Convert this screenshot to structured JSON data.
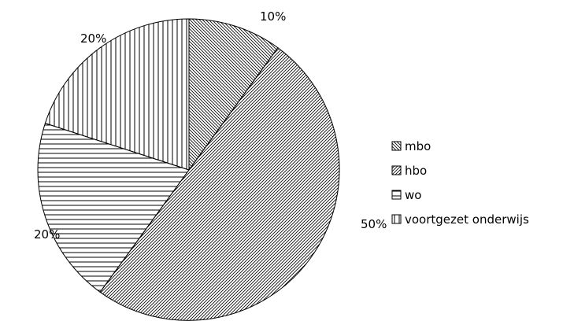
{
  "chart_data": {
    "type": "pie",
    "legend_position": "right",
    "slices": [
      {
        "name": "mbo",
        "value": 10,
        "label": "10%",
        "pattern": "diag-back"
      },
      {
        "name": "hbo",
        "value": 50,
        "label": "50%",
        "pattern": "diag-fwd"
      },
      {
        "name": "wo",
        "value": 20,
        "label": "20%",
        "pattern": "horizontal"
      },
      {
        "name": "voortgezet onderwijs",
        "value": 20,
        "label": "20%",
        "pattern": "vertical"
      }
    ],
    "colors": {
      "stroke": "#000000",
      "pattern": "#000000",
      "background": "#ffffff"
    }
  }
}
